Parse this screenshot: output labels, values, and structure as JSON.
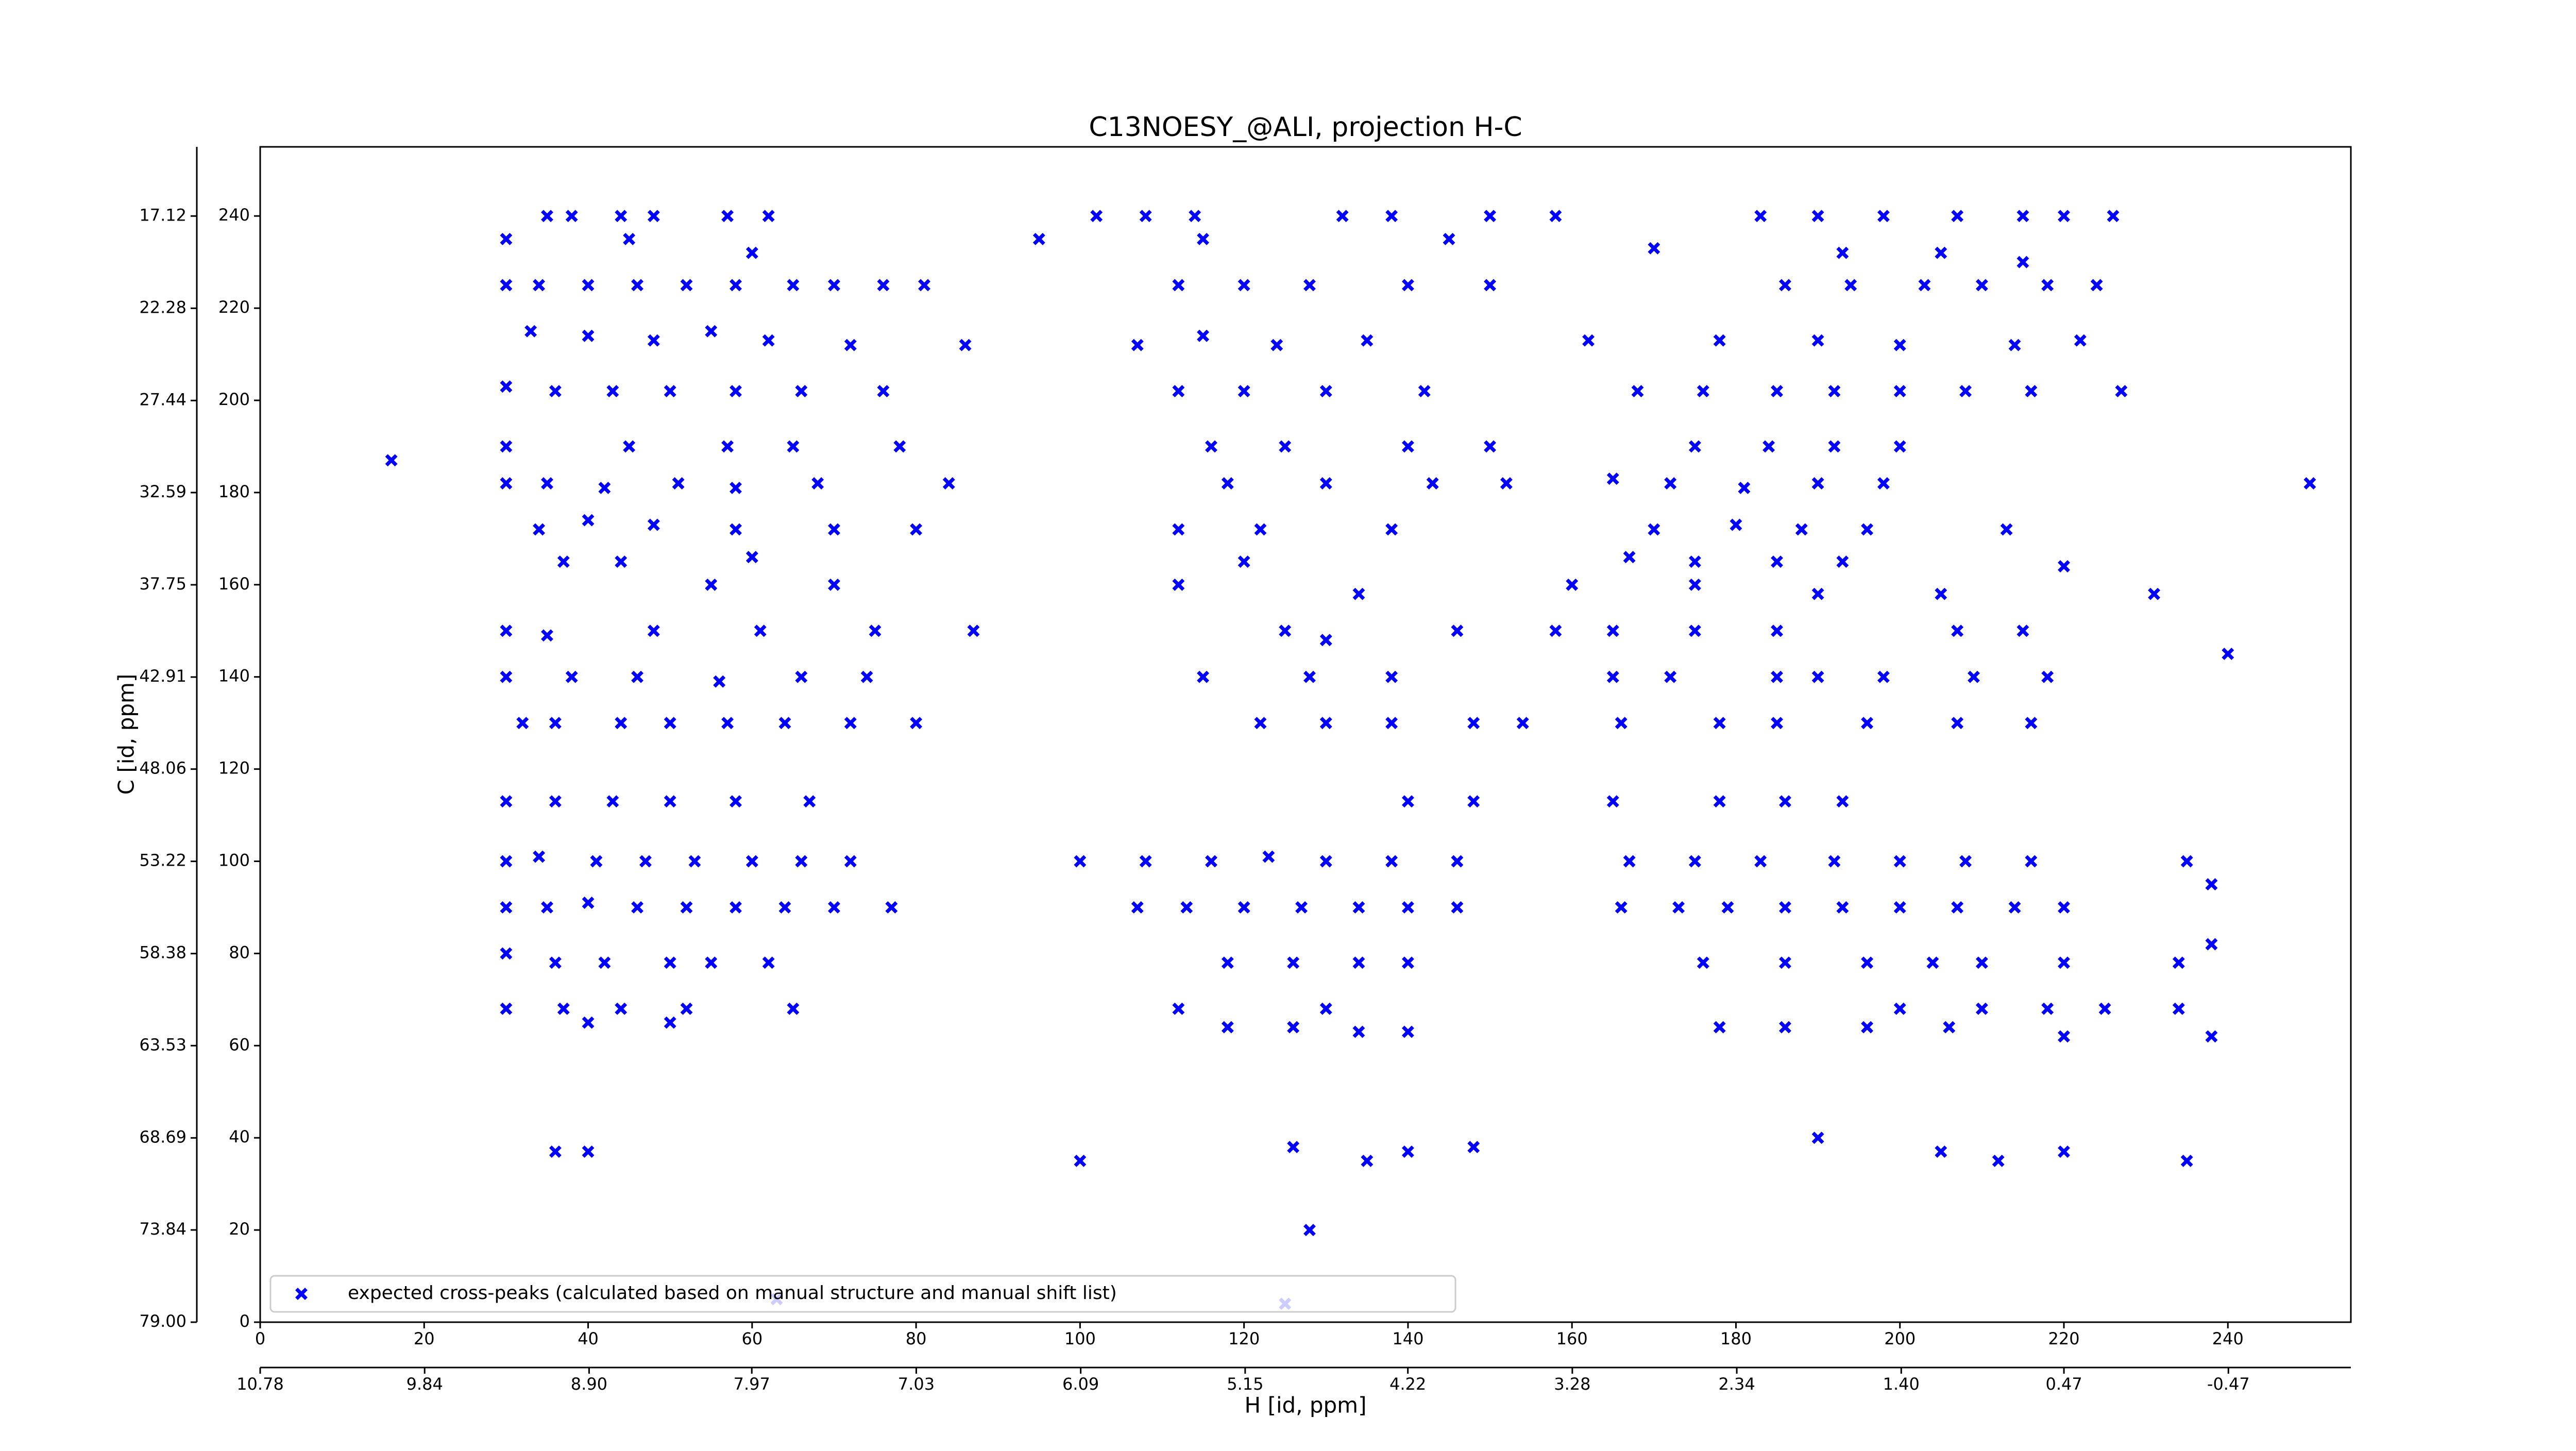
{
  "chart_data": {
    "type": "scatter",
    "title": "C13NOESY_@ALI, projection H-C",
    "xlabel": "H [id, ppm]",
    "ylabel": "C [id, ppm]",
    "xlim": [
      0,
      255
    ],
    "ylim": [
      0,
      255
    ],
    "xticks": [
      0,
      20,
      40,
      60,
      80,
      100,
      120,
      140,
      160,
      180,
      200,
      220,
      240
    ],
    "yticks": [
      0,
      20,
      40,
      60,
      80,
      100,
      120,
      140,
      160,
      180,
      200,
      220,
      240
    ],
    "x2lim": [
      10.78,
      -1.17
    ],
    "x2ticks": [
      10.78,
      9.84,
      {
        "value": 8.9,
        "label": "8.90"
      },
      7.97,
      7.03,
      6.09,
      5.15,
      4.22,
      3.28,
      2.34,
      {
        "value": 1.4,
        "label": "1.40"
      },
      0.47,
      -0.47
    ],
    "y2lim": [
      79.0,
      13.25
    ],
    "y2ticks": [
      {
        "value": 79.0,
        "label": "79.00"
      },
      73.84,
      68.69,
      63.53,
      58.38,
      53.22,
      48.06,
      42.91,
      37.75,
      32.59,
      27.44,
      22.28,
      17.12
    ],
    "legend": "lower left",
    "series": [
      {
        "name": "expected cross-peaks (calculated based on manual structure and manual shift list)",
        "color": "#0000ff",
        "x": [
          35,
          38,
          44,
          48,
          57,
          62,
          102,
          108,
          114,
          132,
          138,
          150,
          158,
          183,
          190,
          198,
          207,
          215,
          220,
          226,
          30,
          45,
          60,
          95,
          115,
          145,
          170,
          193,
          205,
          215,
          30,
          34,
          40,
          46,
          52,
          58,
          65,
          70,
          76,
          81,
          112,
          120,
          128,
          140,
          150,
          186,
          194,
          203,
          210,
          218,
          224,
          33,
          40,
          48,
          55,
          62,
          72,
          86,
          107,
          115,
          124,
          135,
          162,
          178,
          190,
          200,
          214,
          222,
          30,
          36,
          43,
          50,
          58,
          66,
          76,
          112,
          120,
          130,
          142,
          168,
          176,
          185,
          192,
          200,
          208,
          216,
          227,
          30,
          45,
          57,
          65,
          78,
          116,
          125,
          140,
          150,
          175,
          184,
          192,
          200,
          16,
          30,
          35,
          42,
          51,
          58,
          68,
          84,
          118,
          130,
          143,
          152,
          165,
          172,
          181,
          190,
          198,
          250,
          34,
          40,
          48,
          58,
          70,
          80,
          112,
          122,
          138,
          170,
          180,
          188,
          196,
          213,
          37,
          44,
          60,
          120,
          167,
          175,
          185,
          193,
          220,
          55,
          70,
          112,
          134,
          160,
          175,
          190,
          205,
          231,
          30,
          35,
          48,
          61,
          75,
          87,
          125,
          130,
          146,
          158,
          165,
          175,
          185,
          207,
          215,
          30,
          38,
          46,
          56,
          66,
          74,
          115,
          128,
          138,
          165,
          172,
          185,
          190,
          198,
          209,
          218,
          240,
          32,
          36,
          44,
          50,
          57,
          64,
          72,
          80,
          122,
          130,
          138,
          148,
          154,
          166,
          178,
          185,
          196,
          207,
          216,
          30,
          36,
          43,
          50,
          58,
          67,
          140,
          148,
          165,
          178,
          186,
          193,
          30,
          34,
          41,
          47,
          53,
          60,
          66,
          72,
          100,
          108,
          116,
          123,
          130,
          138,
          146,
          167,
          175,
          183,
          192,
          200,
          208,
          216,
          235,
          30,
          35,
          40,
          46,
          52,
          58,
          64,
          70,
          77,
          107,
          113,
          120,
          127,
          134,
          140,
          146,
          166,
          173,
          179,
          186,
          193,
          200,
          207,
          214,
          220,
          238,
          30,
          36,
          42,
          50,
          55,
          62,
          118,
          126,
          134,
          140,
          176,
          186,
          196,
          204,
          210,
          220,
          234,
          238,
          30,
          37,
          44,
          52,
          65,
          112,
          130,
          200,
          210,
          218,
          225,
          234,
          40,
          50,
          118,
          126,
          134,
          140,
          178,
          186,
          196,
          206,
          220,
          238,
          36,
          40,
          100,
          126,
          135,
          140,
          148,
          190,
          205,
          212,
          220,
          235,
          128,
          63,
          125
        ],
        "values": [
          240,
          240,
          240,
          240,
          240,
          240,
          240,
          240,
          240,
          240,
          240,
          240,
          240,
          240,
          240,
          240,
          240,
          240,
          240,
          240,
          235,
          235,
          232,
          235,
          235,
          235,
          233,
          232,
          232,
          230,
          225,
          225,
          225,
          225,
          225,
          225,
          225,
          225,
          225,
          225,
          225,
          225,
          225,
          225,
          225,
          225,
          225,
          225,
          225,
          225,
          225,
          215,
          214,
          213,
          215,
          213,
          212,
          212,
          212,
          214,
          212,
          213,
          213,
          213,
          213,
          212,
          212,
          213,
          203,
          202,
          202,
          202,
          202,
          202,
          202,
          202,
          202,
          202,
          202,
          202,
          202,
          202,
          202,
          202,
          202,
          202,
          202,
          190,
          190,
          190,
          190,
          190,
          190,
          190,
          190,
          190,
          190,
          190,
          190,
          190,
          187,
          182,
          182,
          181,
          182,
          181,
          182,
          182,
          182,
          182,
          182,
          182,
          183,
          182,
          181,
          182,
          182,
          182,
          172,
          174,
          173,
          172,
          172,
          172,
          172,
          172,
          172,
          172,
          173,
          172,
          172,
          172,
          165,
          165,
          166,
          165,
          166,
          165,
          165,
          165,
          164,
          160,
          160,
          160,
          158,
          160,
          160,
          158,
          158,
          158,
          150,
          149,
          150,
          150,
          150,
          150,
          150,
          148,
          150,
          150,
          150,
          150,
          150,
          150,
          150,
          140,
          140,
          140,
          139,
          140,
          140,
          140,
          140,
          140,
          140,
          140,
          140,
          140,
          140,
          140,
          140,
          145,
          130,
          130,
          130,
          130,
          130,
          130,
          130,
          130,
          130,
          130,
          130,
          130,
          130,
          130,
          130,
          130,
          130,
          130,
          130,
          113,
          113,
          113,
          113,
          113,
          113,
          113,
          113,
          113,
          113,
          113,
          113,
          100,
          101,
          100,
          100,
          100,
          100,
          100,
          100,
          100,
          100,
          100,
          101,
          100,
          100,
          100,
          100,
          100,
          100,
          100,
          100,
          100,
          100,
          100,
          90,
          90,
          91,
          90,
          90,
          90,
          90,
          90,
          90,
          90,
          90,
          90,
          90,
          90,
          90,
          90,
          90,
          90,
          90,
          90,
          90,
          90,
          90,
          90,
          90,
          95,
          80,
          78,
          78,
          78,
          78,
          78,
          78,
          78,
          78,
          78,
          78,
          78,
          78,
          78,
          78,
          78,
          78,
          82,
          68,
          68,
          68,
          68,
          68,
          68,
          68,
          68,
          68,
          68,
          68,
          68,
          65,
          65,
          64,
          64,
          63,
          63,
          64,
          64,
          64,
          64,
          62,
          62,
          37,
          37,
          35,
          38,
          35,
          37,
          38,
          40,
          37,
          35,
          37,
          35,
          20,
          5,
          4
        ]
      }
    ]
  }
}
